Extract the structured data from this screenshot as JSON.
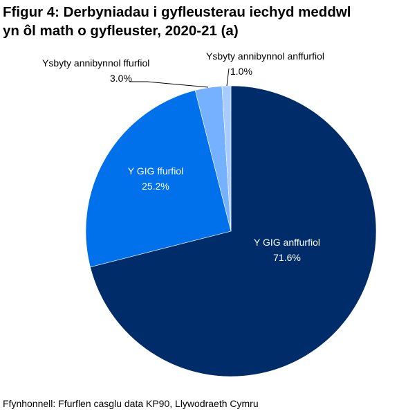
{
  "title_line1": "Ffigur 4: Derbyniadau i gyfleusterau iechyd meddwl",
  "title_line2": "yn ôl math o gyfleuster, 2020-21 (a)",
  "source": "Ffynhonnell: Ffurflen casglu data KP90, Llywodraeth Cymru",
  "labels": {
    "nhs_informal": {
      "name": "Y GIG anffurfiol",
      "value": "71.6%"
    },
    "nhs_formal": {
      "name": "Y GIG ffurfiol",
      "value": "25.2%"
    },
    "indep_formal": {
      "name": "Ysbyty annibynnol ffurfiol",
      "value": "3.0%"
    },
    "indep_informal": {
      "name": "Ysbyty annibynnol anffurfiol",
      "value": "1.0%"
    }
  },
  "chart_data": {
    "type": "pie",
    "title": "Ffigur 4: Derbyniadau i gyfleusterau iechyd meddwl yn ôl math o gyfleuster, 2020-21 (a)",
    "categories": [
      "Y GIG anffurfiol",
      "Y GIG ffurfiol",
      "Ysbyty annibynnol ffurfiol",
      "Ysbyty annibynnol anffurfiol"
    ],
    "values": [
      71.6,
      25.2,
      3.0,
      1.0
    ],
    "colors": [
      "#002D6A",
      "#0070EB",
      "#75B1FF",
      "#A8CCFF"
    ],
    "start_angle": "12 o'clock, clockwise",
    "legend": "none (data labels)",
    "source": "Ffynhonnell: Ffurflen casglu data KP90, Llywodraeth Cymru"
  }
}
